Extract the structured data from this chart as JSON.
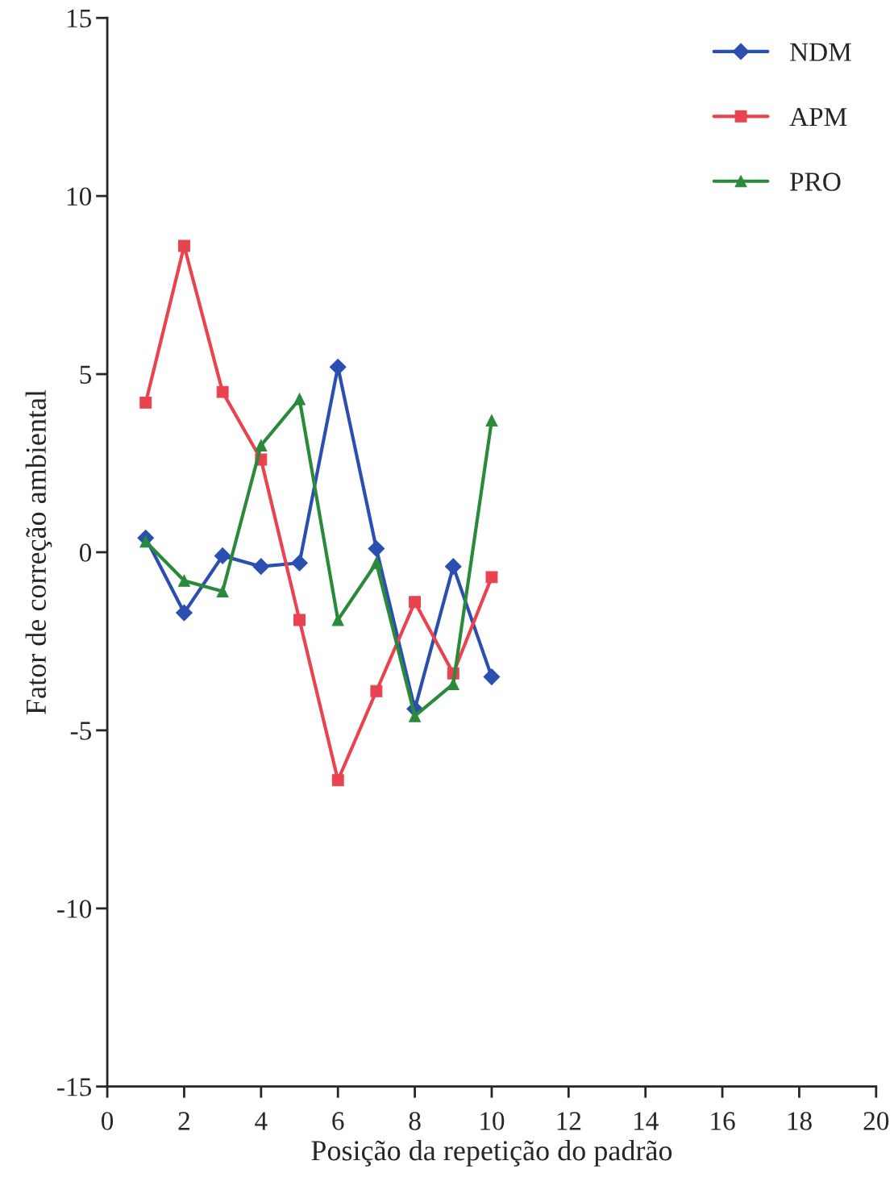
{
  "chart_data": {
    "type": "line",
    "xlabel": "Posição da repetição do padrão",
    "ylabel": "Fator de correção ambiental",
    "x": [
      1,
      2,
      3,
      4,
      5,
      6,
      7,
      8,
      9,
      10
    ],
    "series": [
      {
        "name": "NDM",
        "color": "#2a4fb0",
        "marker": "diamond",
        "values": [
          0.4,
          -1.7,
          -0.1,
          -0.4,
          -0.3,
          5.2,
          0.1,
          -4.4,
          -0.4,
          -3.5
        ]
      },
      {
        "name": "APM",
        "color": "#e8434f",
        "marker": "square",
        "values": [
          4.2,
          8.6,
          4.5,
          2.6,
          -1.9,
          -6.4,
          -3.9,
          -1.4,
          -3.4,
          -0.7
        ]
      },
      {
        "name": "PRO",
        "color": "#2a8a3c",
        "marker": "triangle",
        "values": [
          0.3,
          -0.8,
          -1.1,
          3.0,
          4.3,
          -1.9,
          -0.3,
          -4.6,
          -3.7,
          3.7
        ]
      }
    ],
    "xlim": [
      0,
      20
    ],
    "xticks": [
      0,
      2,
      4,
      6,
      8,
      10,
      12,
      14,
      16,
      18,
      20
    ],
    "ylim": [
      -15,
      15
    ],
    "yticks": [
      -15,
      -10,
      -5,
      0,
      5,
      10,
      15
    ],
    "grid": false,
    "legend": "top right",
    "line_style": "solid"
  }
}
